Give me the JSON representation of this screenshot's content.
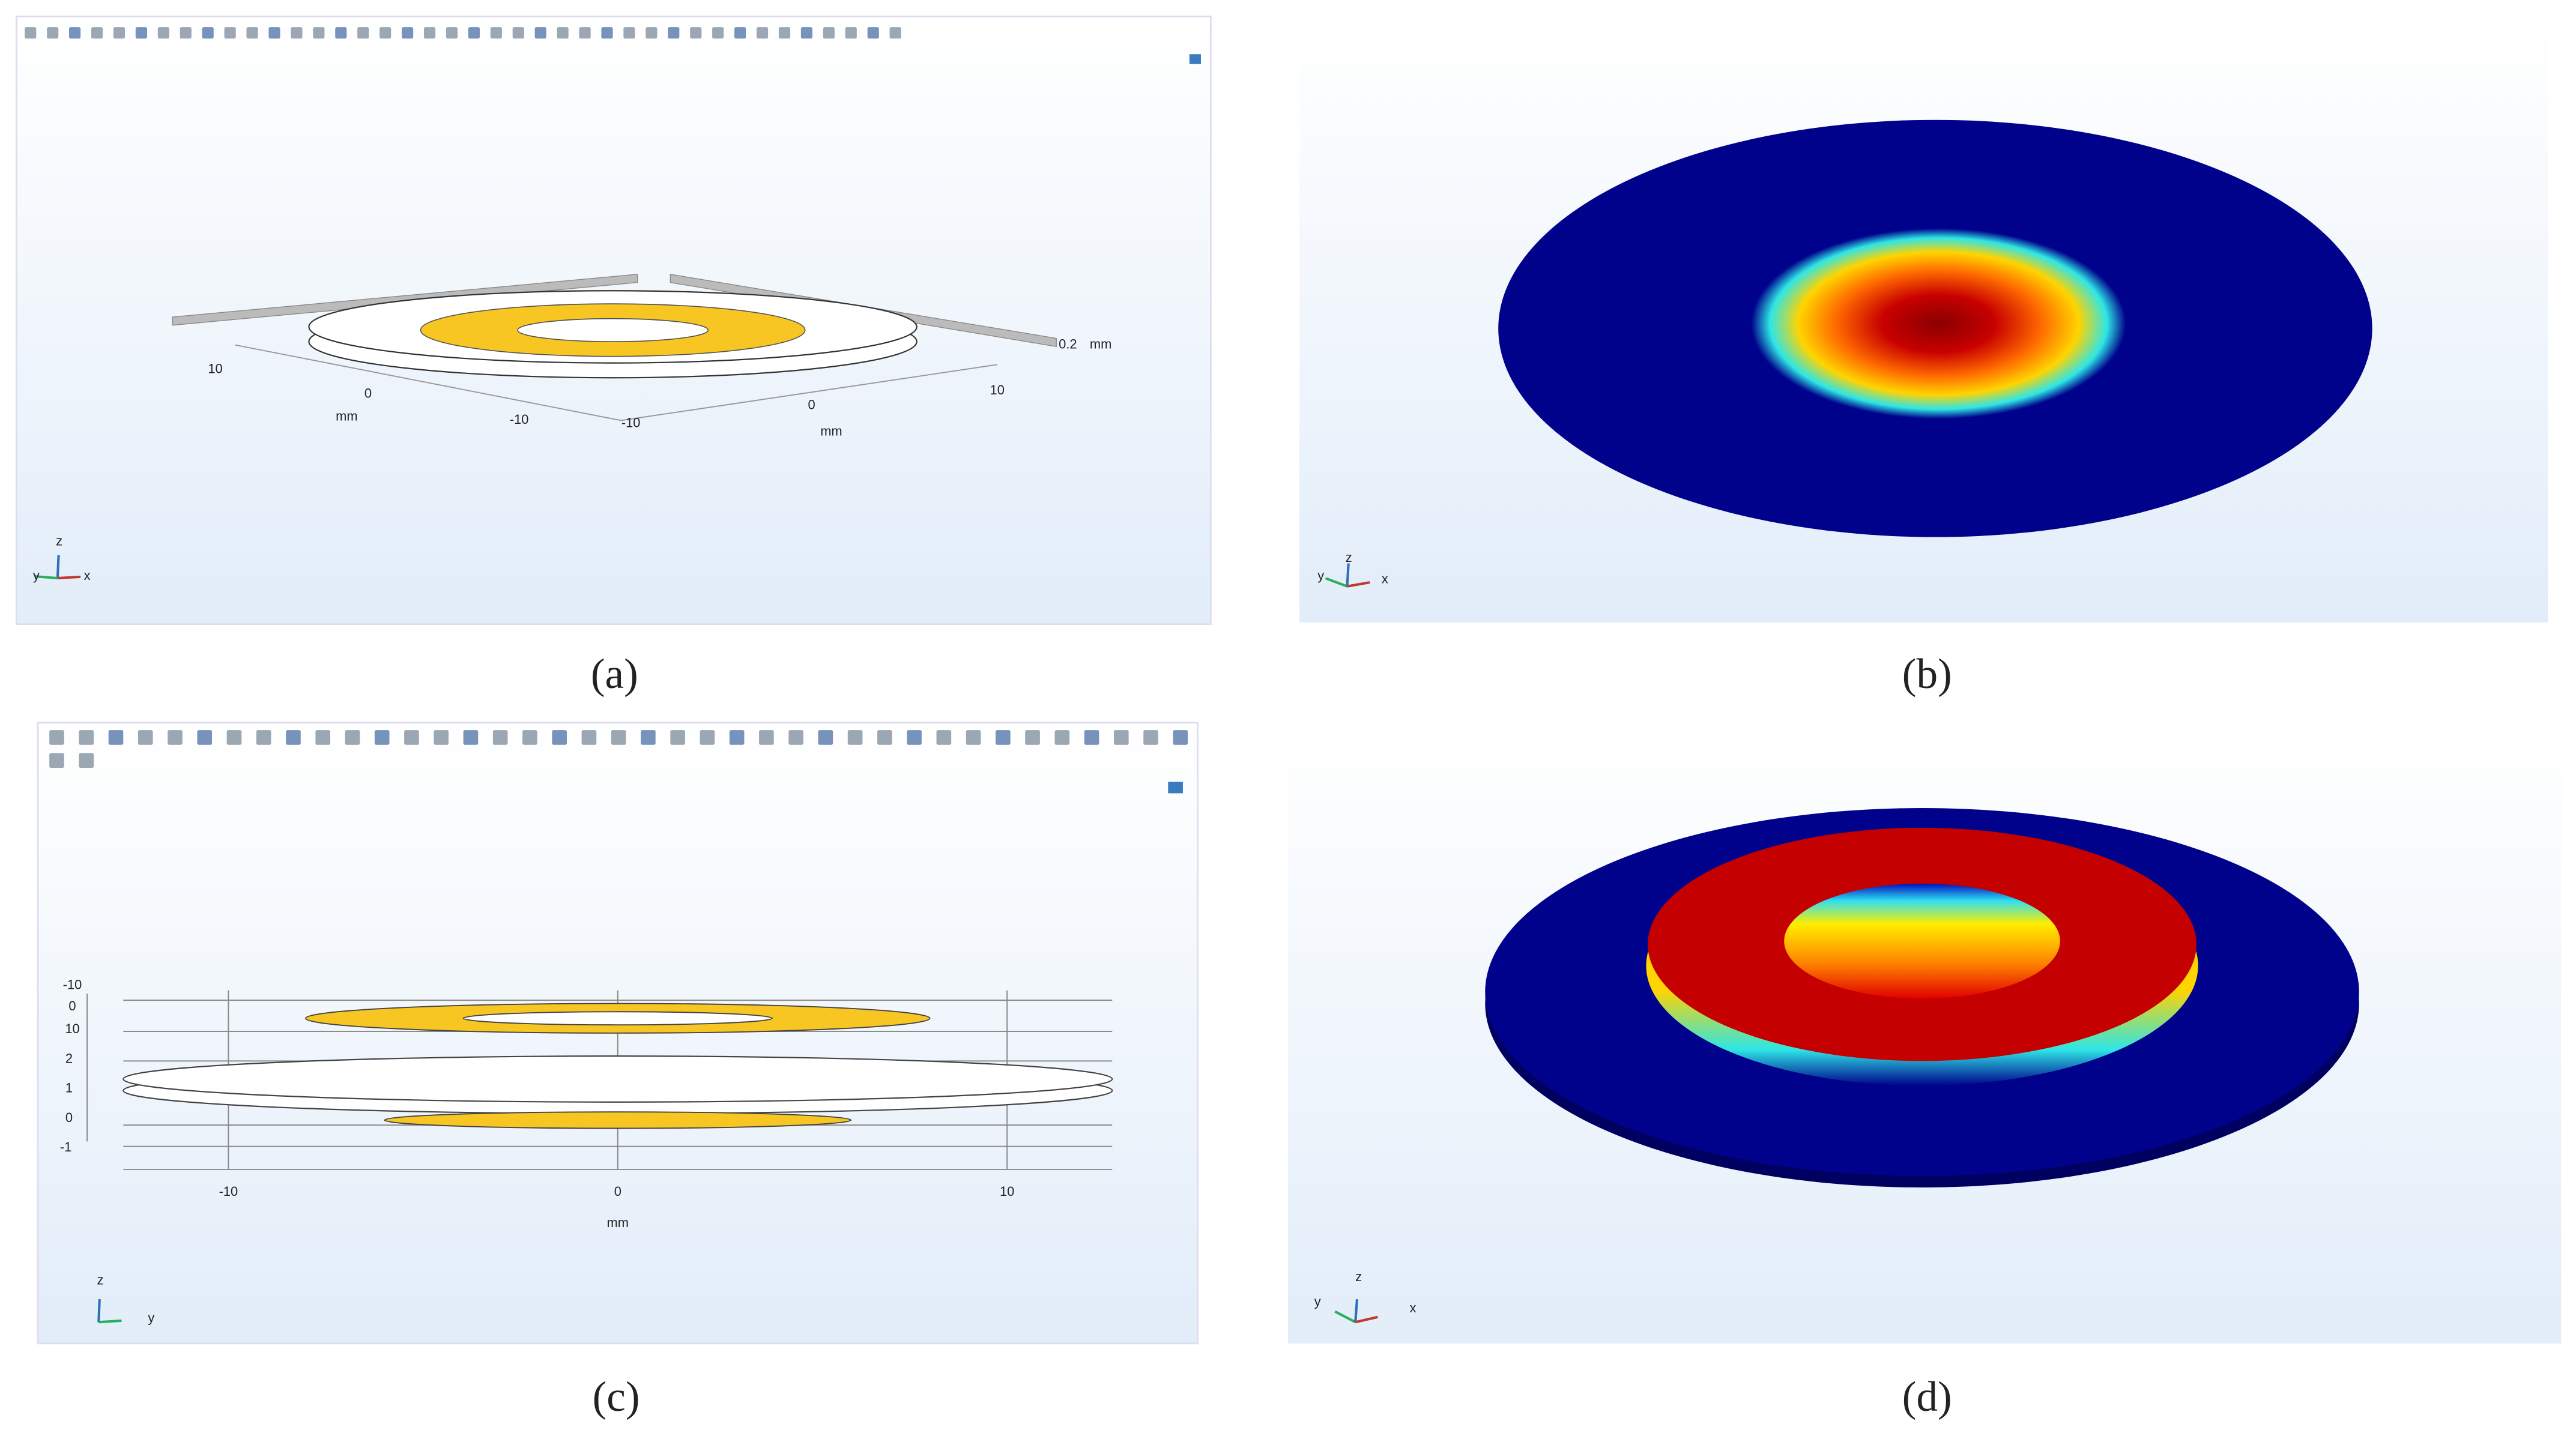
{
  "panels": [
    {
      "caption": "(a)",
      "labels": [
        "0.2",
        "mm",
        "10",
        "0",
        "mm",
        "-10",
        "-10",
        "0",
        "mm",
        "10"
      ],
      "triad": [
        "z",
        "y",
        "x"
      ]
    },
    {
      "caption": "(b)",
      "triad": [
        "y",
        "z",
        "x"
      ]
    },
    {
      "caption": "(c)",
      "labels": [
        "-10",
        "0",
        "10",
        "2",
        "1",
        "0",
        "-1",
        "-10",
        "0",
        "10",
        "mm"
      ],
      "triad": [
        "z",
        "y"
      ]
    },
    {
      "caption": "(d)",
      "triad": [
        "y",
        "z",
        "x"
      ]
    }
  ]
}
